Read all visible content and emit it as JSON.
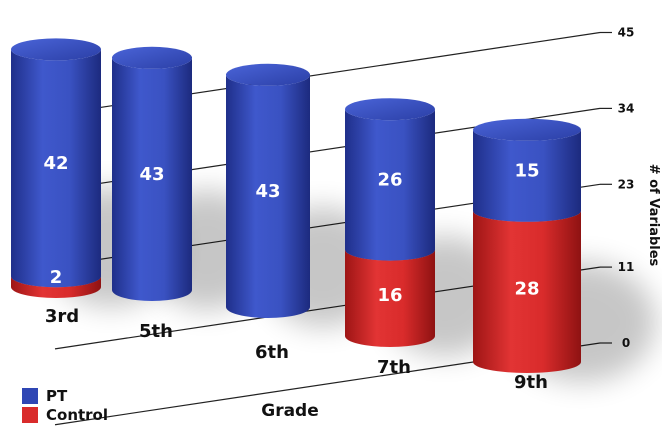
{
  "chart_data": {
    "type": "bar",
    "stacked": true,
    "style": "3d-cylinder",
    "categories": [
      "3rd",
      "5th",
      "6th",
      "7th",
      "9th"
    ],
    "series": [
      {
        "name": "Control",
        "color": "#d92b2b",
        "values": [
          2,
          0,
          0,
          16,
          28
        ]
      },
      {
        "name": "PT",
        "color": "#2f46b4",
        "values": [
          42,
          43,
          43,
          26,
          15
        ]
      }
    ],
    "data_labels": {
      "Control": [
        "2",
        "",
        "",
        "16",
        "28"
      ],
      "PT": [
        "42",
        "43",
        "43",
        "26",
        "15"
      ]
    },
    "xlabel": "Grade",
    "ylabel": "# of Variables",
    "yticks": [
      0,
      11,
      23,
      34,
      45
    ],
    "ylim": [
      0,
      45
    ],
    "legend_position": "bottom-left",
    "grid": true
  }
}
